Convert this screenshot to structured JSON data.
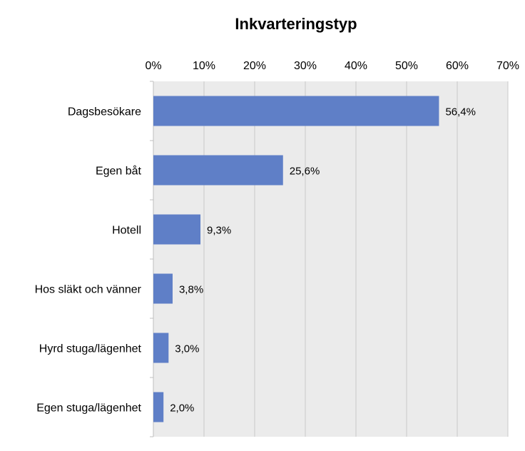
{
  "chart_data": {
    "type": "bar",
    "orientation": "horizontal",
    "title": "Inkvarteringstyp",
    "categories": [
      "Dagsbesökare",
      "Egen båt",
      "Hotell",
      "Hos släkt och vänner",
      "Hyrd stuga/lägenhet",
      "Egen stuga/lägenhet"
    ],
    "values": [
      56.4,
      25.6,
      9.3,
      3.8,
      3.0,
      2.0
    ],
    "value_labels": [
      "56,4%",
      "25,6%",
      "9,3%",
      "3,8%",
      "3,0%",
      "2,0%"
    ],
    "x_ticks": [
      "0%",
      "10%",
      "20%",
      "30%",
      "40%",
      "50%",
      "60%",
      "70%"
    ],
    "xlim": [
      0,
      70
    ],
    "xaxis_position": "top",
    "xlabel": "",
    "ylabel": "",
    "grid": true,
    "legend": "none",
    "colors": {
      "bar": "#5F7FC7",
      "plot_background": "#EBEBEB",
      "gridline": "#C8C8C8",
      "axis": "#BFBFBF"
    }
  }
}
